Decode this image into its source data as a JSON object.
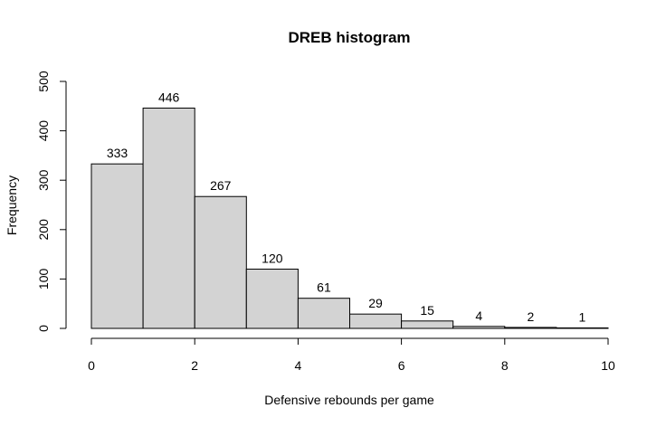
{
  "chart_data": {
    "type": "bar",
    "title": "DREB histogram",
    "xlabel": "Defensive rebounds per game",
    "ylabel": "Frequency",
    "bins": [
      {
        "start": 0,
        "end": 1,
        "count": 333
      },
      {
        "start": 1,
        "end": 2,
        "count": 446
      },
      {
        "start": 2,
        "end": 3,
        "count": 267
      },
      {
        "start": 3,
        "end": 4,
        "count": 120
      },
      {
        "start": 4,
        "end": 5,
        "count": 61
      },
      {
        "start": 5,
        "end": 6,
        "count": 29
      },
      {
        "start": 6,
        "end": 7,
        "count": 15
      },
      {
        "start": 7,
        "end": 8,
        "count": 4
      },
      {
        "start": 8,
        "end": 9,
        "count": 2
      },
      {
        "start": 9,
        "end": 10,
        "count": 1
      }
    ],
    "xlim": [
      0,
      10
    ],
    "ylim": [
      0,
      500
    ],
    "xticks": [
      0,
      2,
      4,
      6,
      8,
      10
    ],
    "yticks": [
      0,
      100,
      200,
      300,
      400,
      500
    ],
    "bar_fill": "#d3d3d3",
    "grid": false,
    "legend": "none"
  }
}
